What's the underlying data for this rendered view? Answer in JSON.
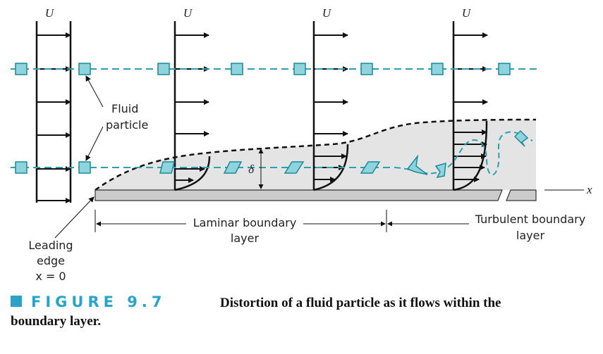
{
  "velocity_profiles": [
    {
      "label": "U"
    },
    {
      "label": "U"
    },
    {
      "label": "U"
    },
    {
      "label": "U"
    }
  ],
  "labels": {
    "fluid_particle": [
      "Fluid",
      "particle"
    ],
    "delta": "δ",
    "x_axis": "x",
    "laminar": [
      "Laminar boundary",
      "layer"
    ],
    "turbulent": [
      "Turbulent boundary",
      "layer"
    ],
    "leading_edge": [
      "Leading",
      "edge",
      "x = 0"
    ]
  },
  "caption": {
    "figure": "FIGURE 9.7",
    "lines": [
      "Distortion of a fluid particle as it flows within the",
      "boundary layer."
    ]
  }
}
